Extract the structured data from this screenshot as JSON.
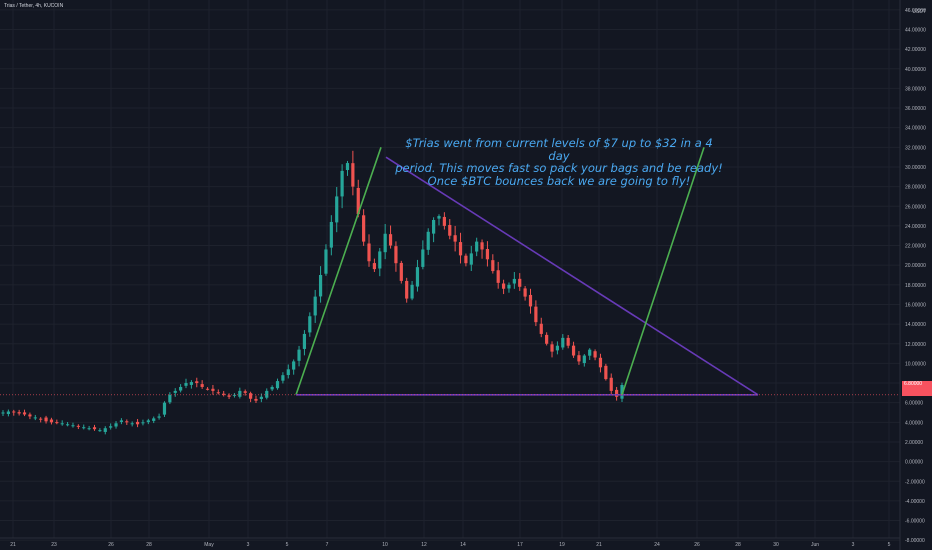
{
  "header": {
    "title": "Trias / Tether, 4h, KUCOIN"
  },
  "note": {
    "lines": [
      "$Trias went from current levels of $7 up to $32 in a 4 day",
      "period. This moves fast so pack your bags and be ready!",
      "Once $BTC bounces back we are going to fly!"
    ]
  },
  "colors": {
    "background": "#131722",
    "bullish": "#26a69a",
    "bearish": "#ef5350",
    "trend_green": "#4caf50",
    "triangle_purple": "#673ab7",
    "note_blue": "#4aa8f0",
    "price_tag": "#f7525f"
  },
  "price_axis": {
    "unit": "USDT",
    "ticks": [
      "46.00000",
      "44.00000",
      "42.00000",
      "40.00000",
      "38.00000",
      "36.00000",
      "34.00000",
      "32.00000",
      "30.00000",
      "28.00000",
      "26.00000",
      "24.00000",
      "22.00000",
      "20.00000",
      "18.00000",
      "16.00000",
      "14.00000",
      "12.00000",
      "10.00000",
      "8.00000",
      "6.00000",
      "4.00000",
      "2.00000",
      "0.00000",
      "-2.00000",
      "-4.00000",
      "-6.00000",
      "-8.00000"
    ],
    "current_price_label": "6.80000"
  },
  "time_axis": {
    "ticks": [
      "21",
      "23",
      "26",
      "28",
      "May",
      "3",
      "5",
      "7",
      "10",
      "12",
      "14",
      "17",
      "19",
      "21",
      "24",
      "26",
      "28",
      "30",
      "Jun",
      "3",
      "5"
    ]
  },
  "chart_data": {
    "type": "candlestick",
    "title": "Trias / Tether, 4h, KUCOIN",
    "xlabel": "",
    "ylabel": "",
    "ylim": [
      -9,
      47
    ],
    "grid": true,
    "series": [
      {
        "name": "",
        "values": [
          5.0,
          5.1,
          5.0,
          4.9,
          4.8,
          4.6,
          4.5,
          4.3,
          4.1,
          4.0,
          4.0,
          3.9,
          3.8,
          3.7,
          3.6,
          3.5,
          3.4,
          3.3,
          3.2,
          3.4,
          3.6,
          3.9,
          4.2,
          4.0,
          3.9,
          3.8,
          4.0,
          4.2,
          4.4,
          4.6,
          6.0,
          6.8,
          7.2,
          7.6,
          8.0,
          8.1,
          8.0,
          7.6,
          7.4,
          7.2,
          7.0,
          6.8,
          6.6,
          6.8,
          7.2,
          7.0,
          6.4,
          6.2,
          6.6,
          7.2,
          7.6,
          8.2,
          8.8,
          9.4,
          10.2,
          11.4,
          13.0,
          14.8,
          16.8,
          19.0,
          21.6,
          24.4,
          27.0,
          29.6,
          30.4,
          28.0,
          25.2,
          22.4,
          20.4,
          19.6,
          21.4,
          23.2,
          22.0,
          20.2,
          18.4,
          16.6,
          18.0,
          19.8,
          21.6,
          23.4,
          24.6,
          25.0,
          24.0,
          23.0,
          22.4,
          21.0,
          20.2,
          21.2,
          22.4,
          21.6,
          20.6,
          19.4,
          18.2,
          17.6,
          18.0,
          18.6,
          17.8,
          16.8,
          15.8,
          14.2,
          13.0,
          12.0,
          11.2,
          11.8,
          12.6,
          11.8,
          10.8,
          10.2,
          10.8,
          11.4,
          10.6,
          9.6,
          8.4,
          7.2,
          6.6,
          7.8
        ]
      }
    ],
    "annotations": [
      "$Trias went from current levels of $7 up to $32 in a 4 day",
      "period. This moves fast so pack your bags and be ready!",
      "Once $BTC bounces back we are going to fly!"
    ],
    "drawings": {
      "green_up_trendline": {
        "from_price": 6.8,
        "to_price": 32.0
      },
      "triangle_upper": {
        "from_price": 31.0,
        "to_price": 6.8
      },
      "triangle_base": {
        "price": 6.8
      },
      "green_projection": {
        "from_price": 6.8,
        "to_price": 32.0
      }
    }
  }
}
